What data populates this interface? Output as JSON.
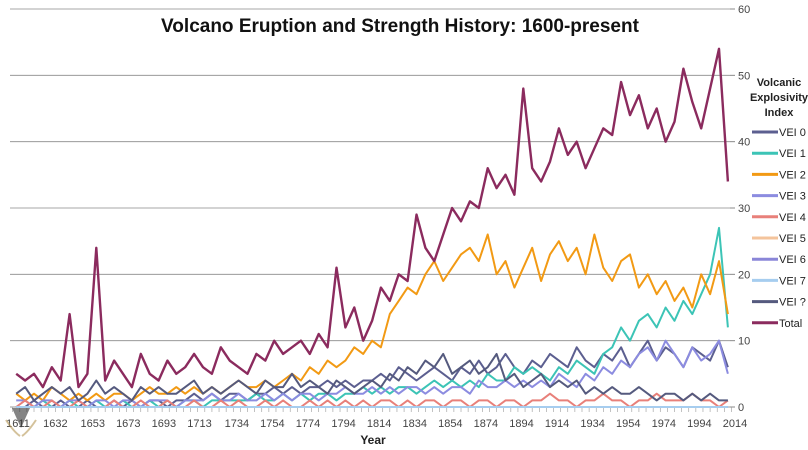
{
  "chart_data": {
    "type": "line",
    "title": "Volcano Eruption and Strength History: 1600-present",
    "xlabel": "Year",
    "ylabel": "",
    "ylim": [
      0,
      60
    ],
    "y_ticks": [
      "0",
      "10",
      "20",
      "30",
      "40",
      "50",
      "60"
    ],
    "x_ticks": [
      "1611",
      "1632",
      "1653",
      "1673",
      "1693",
      "1713",
      "1734",
      "1754",
      "1774",
      "1794",
      "1814",
      "1834",
      "1854",
      "1874",
      "1894",
      "1914",
      "1934",
      "1954",
      "1974",
      "1994",
      "2014"
    ],
    "x_range": [
      1611,
      2014
    ],
    "grid": "horizontal",
    "legend_title": "Volcanic Explosivity Index",
    "legend_placement": "right",
    "x_start": 1610,
    "x_step": 5,
    "series": [
      {
        "name": "VEI 0",
        "color": "#5c5f90",
        "values": [
          0,
          0,
          1,
          0,
          0,
          1,
          0,
          0,
          1,
          0,
          0,
          1,
          0,
          1,
          0,
          1,
          1,
          0,
          1,
          1,
          2,
          1,
          2,
          1,
          2,
          2,
          1,
          2,
          2,
          3,
          2,
          3,
          2,
          3,
          3,
          4,
          3,
          4,
          3,
          4,
          4,
          5,
          4,
          6,
          5,
          4,
          5,
          6,
          5,
          4,
          6,
          5,
          7,
          5,
          6,
          8,
          6,
          5,
          7,
          6,
          8,
          7,
          6,
          9,
          7,
          6,
          8,
          7,
          9,
          6,
          8,
          10,
          7,
          9,
          8,
          6,
          9,
          8,
          7,
          10,
          6
        ]
      },
      {
        "name": "VEI 1",
        "color": "#3cc4b6",
        "values": [
          0,
          0,
          0,
          1,
          0,
          0,
          1,
          0,
          0,
          1,
          0,
          0,
          1,
          0,
          0,
          1,
          0,
          1,
          0,
          1,
          1,
          0,
          1,
          1,
          1,
          1,
          1,
          2,
          1,
          1,
          2,
          1,
          2,
          1,
          2,
          2,
          1,
          2,
          2,
          3,
          2,
          3,
          2,
          3,
          3,
          2,
          3,
          4,
          3,
          4,
          3,
          4,
          3,
          5,
          4,
          4,
          6,
          5,
          6,
          5,
          4,
          6,
          5,
          7,
          6,
          5,
          8,
          9,
          12,
          10,
          13,
          14,
          12,
          15,
          13,
          16,
          14,
          17,
          20,
          27,
          12
        ]
      },
      {
        "name": "VEI 2",
        "color": "#f29a14",
        "values": [
          2,
          1,
          2,
          1,
          3,
          2,
          1,
          2,
          1,
          2,
          1,
          2,
          2,
          1,
          2,
          3,
          2,
          2,
          3,
          2,
          3,
          2,
          3,
          2,
          3,
          4,
          3,
          3,
          4,
          3,
          4,
          5,
          4,
          6,
          5,
          7,
          6,
          7,
          9,
          8,
          10,
          9,
          14,
          16,
          18,
          17,
          20,
          22,
          19,
          21,
          23,
          24,
          22,
          26,
          20,
          22,
          18,
          21,
          24,
          19,
          23,
          25,
          22,
          24,
          20,
          26,
          21,
          19,
          22,
          23,
          18,
          20,
          17,
          19,
          16,
          18,
          15,
          20,
          17,
          22,
          14
        ]
      },
      {
        "name": "VEI 3",
        "color": "#8c8ce0",
        "values": [
          1,
          1,
          0,
          1,
          1,
          0,
          1,
          1,
          0,
          1,
          1,
          0,
          1,
          1,
          0,
          1,
          1,
          1,
          0,
          1,
          1,
          1,
          2,
          1,
          1,
          2,
          1,
          1,
          2,
          1,
          2,
          1,
          2,
          2,
          1,
          2,
          2,
          3,
          2,
          2,
          3,
          2,
          3,
          2,
          3,
          3,
          2,
          3,
          2,
          3,
          3,
          2,
          4,
          3,
          3,
          4,
          3,
          4,
          3,
          4,
          3,
          5,
          4,
          3,
          5,
          4,
          6,
          5,
          7,
          6,
          8,
          9,
          7,
          10,
          8,
          6,
          9,
          7,
          8,
          10,
          5
        ]
      },
      {
        "name": "VEI 4",
        "color": "#e8807a",
        "values": [
          0,
          1,
          0,
          0,
          1,
          0,
          0,
          1,
          0,
          0,
          0,
          1,
          0,
          0,
          1,
          0,
          0,
          1,
          0,
          0,
          1,
          0,
          0,
          1,
          0,
          1,
          0,
          0,
          1,
          0,
          1,
          0,
          0,
          1,
          0,
          1,
          0,
          1,
          0,
          1,
          0,
          1,
          1,
          0,
          1,
          0,
          1,
          1,
          0,
          1,
          1,
          0,
          1,
          1,
          0,
          1,
          1,
          0,
          1,
          1,
          2,
          1,
          1,
          0,
          1,
          1,
          2,
          1,
          1,
          0,
          1,
          1,
          2,
          1,
          1,
          1,
          2,
          1,
          1,
          0,
          1
        ]
      },
      {
        "name": "VEI 5",
        "color": "#f4c49c",
        "values": [
          0,
          0,
          0,
          0,
          0,
          0,
          0,
          0,
          0,
          0,
          0,
          0,
          0,
          0,
          0,
          0,
          0,
          0,
          0,
          0,
          0,
          0,
          0,
          0,
          0,
          0,
          0,
          0,
          0,
          0,
          0,
          0,
          0,
          0,
          0,
          0,
          0,
          0,
          0,
          0,
          0,
          0,
          0,
          0,
          0,
          0,
          0,
          0,
          0,
          0,
          0,
          0,
          0,
          0,
          0,
          0,
          0,
          0,
          0,
          0,
          0,
          0,
          0,
          0,
          0,
          0,
          0,
          0,
          0,
          0,
          0,
          0,
          0,
          0,
          0,
          0,
          0,
          0,
          0,
          0,
          0
        ]
      },
      {
        "name": "VEI 6",
        "color": "#8a86d8",
        "values": [
          0,
          0,
          0,
          0,
          0,
          0,
          0,
          0,
          0,
          0,
          0,
          0,
          0,
          0,
          0,
          0,
          0,
          0,
          0,
          0,
          0,
          0,
          0,
          0,
          0,
          0,
          0,
          0,
          0,
          0,
          0,
          0,
          0,
          0,
          0,
          0,
          0,
          0,
          0,
          0,
          0,
          0,
          0,
          0,
          0,
          0,
          0,
          0,
          0,
          0,
          0,
          0,
          0,
          0,
          0,
          0,
          0,
          0,
          0,
          0,
          0,
          0,
          0,
          0,
          0,
          0,
          0,
          0,
          0,
          0,
          0,
          0,
          0,
          0,
          0,
          0,
          0,
          0,
          0,
          0,
          0
        ]
      },
      {
        "name": "VEI 7",
        "color": "#a6cdef",
        "values": [
          0,
          0,
          0,
          0,
          0,
          0,
          0,
          0,
          0,
          0,
          0,
          0,
          0,
          0,
          0,
          0,
          0,
          0,
          0,
          0,
          0,
          0,
          0,
          0,
          0,
          0,
          0,
          0,
          0,
          0,
          0,
          0,
          0,
          0,
          0,
          0,
          0,
          0,
          0,
          0,
          0,
          0,
          0,
          0,
          0,
          0,
          0,
          0,
          0,
          0,
          0,
          0,
          0,
          0,
          0,
          0,
          0,
          0,
          0,
          0,
          0,
          0,
          0,
          0,
          0,
          0,
          0,
          0,
          0,
          0,
          0,
          0,
          0,
          0,
          0,
          0,
          0,
          0,
          0,
          0,
          0
        ]
      },
      {
        "name": "VEI ?",
        "color": "#555a7e",
        "values": [
          2,
          3,
          1,
          2,
          3,
          2,
          3,
          1,
          2,
          4,
          2,
          3,
          2,
          1,
          3,
          2,
          3,
          2,
          2,
          3,
          4,
          2,
          3,
          2,
          3,
          4,
          3,
          2,
          4,
          3,
          3,
          5,
          3,
          4,
          3,
          2,
          4,
          3,
          2,
          3,
          4,
          3,
          5,
          4,
          6,
          5,
          7,
          6,
          8,
          5,
          6,
          7,
          5,
          6,
          8,
          4,
          5,
          3,
          4,
          5,
          3,
          4,
          3,
          4,
          2,
          3,
          2,
          3,
          2,
          2,
          3,
          2,
          1,
          2,
          2,
          1,
          2,
          1,
          2,
          1,
          1
        ]
      },
      {
        "name": "Total",
        "color": "#8b2b5e",
        "values": [
          5,
          4,
          5,
          3,
          6,
          4,
          14,
          3,
          5,
          24,
          4,
          7,
          5,
          3,
          8,
          5,
          4,
          7,
          5,
          6,
          8,
          6,
          5,
          9,
          7,
          6,
          5,
          8,
          7,
          10,
          8,
          9,
          10,
          8,
          11,
          9,
          21,
          12,
          15,
          10,
          13,
          18,
          16,
          20,
          19,
          29,
          24,
          22,
          26,
          30,
          28,
          31,
          30,
          36,
          33,
          35,
          32,
          48,
          36,
          34,
          37,
          42,
          38,
          40,
          36,
          39,
          42,
          41,
          49,
          44,
          47,
          42,
          45,
          40,
          43,
          51,
          46,
          42,
          48,
          54,
          34
        ]
      }
    ]
  }
}
